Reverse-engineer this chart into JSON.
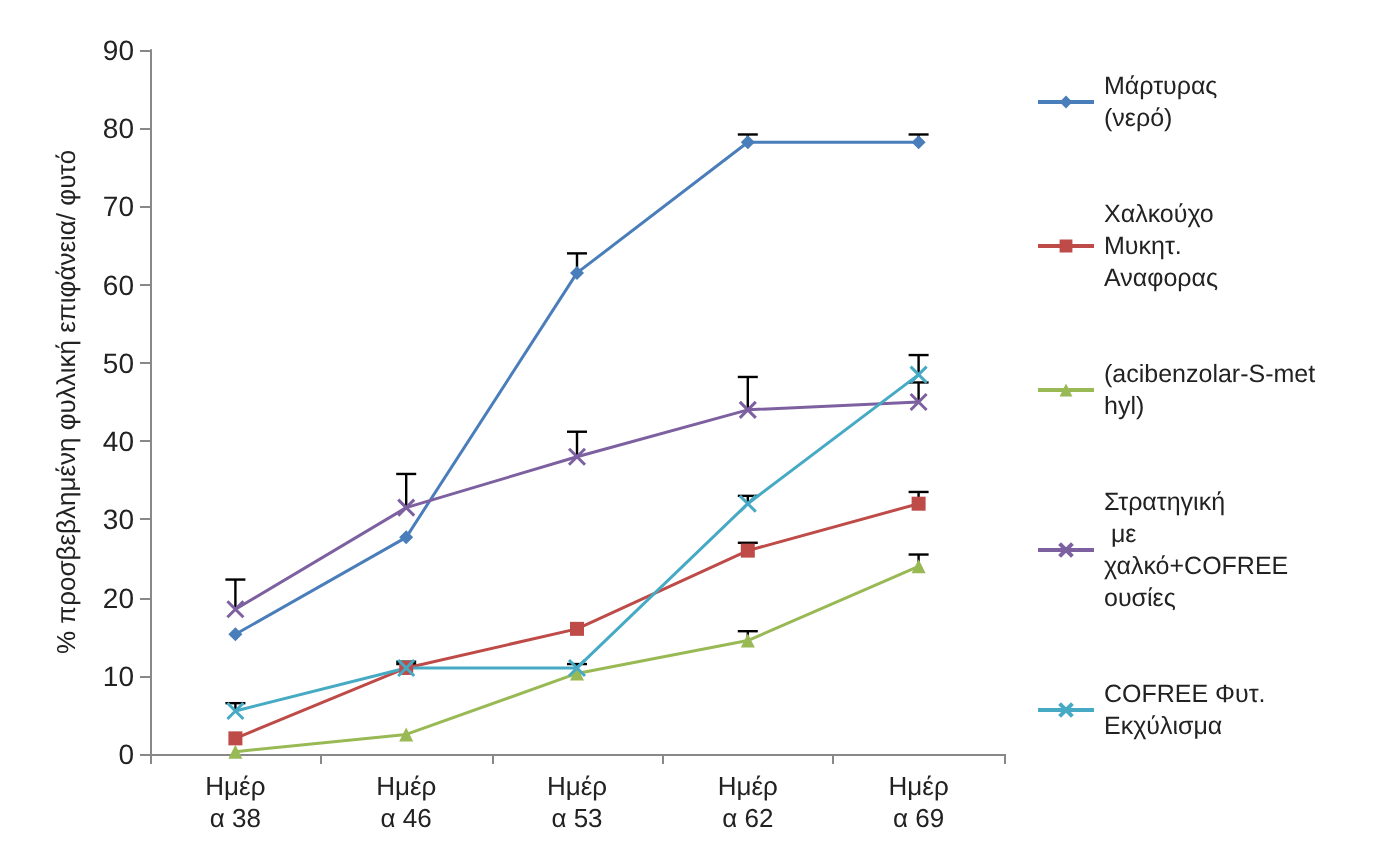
{
  "chart_data": {
    "type": "line",
    "ylabel": "% προσβεβλημένη φυλλική επιφάνεια/ φυτό",
    "categories": [
      "Ημέρα 38",
      "Ημέρα 46",
      "Ημέρα 53",
      "Ημέρα 62",
      "Ημέρα 69"
    ],
    "series": [
      {
        "name": "Μάρτυρας (νερό)",
        "color": "#4a7ebb",
        "marker": "diamond",
        "values": [
          15.3,
          27.7,
          61.5,
          78.2,
          78.2
        ],
        "errors": [
          null,
          null,
          [
            61.5,
            64
          ],
          [
            78.2,
            79.2
          ],
          [
            78.2,
            79.2
          ]
        ]
      },
      {
        "name": "Χαλκούχο Μυκητ. Αναφορας",
        "color": "#be4b48",
        "marker": "square",
        "values": [
          2,
          11,
          16,
          26,
          32
        ],
        "errors": [
          null,
          [
            11,
            11.8
          ],
          null,
          [
            26,
            27
          ],
          [
            32,
            33.5
          ]
        ]
      },
      {
        "name": "(acibenzolar-S-methyl)",
        "color": "#98b954",
        "marker": "triangle",
        "values": [
          0.3,
          2.5,
          10.3,
          14.5,
          24
        ],
        "errors": [
          null,
          null,
          null,
          [
            14.5,
            15.7
          ],
          [
            24,
            25.5
          ]
        ]
      },
      {
        "name": "Στρατηγική με χαλκό+COFREE ουσίες",
        "color": "#7d60a0",
        "marker": "cross",
        "values": [
          18.5,
          31.5,
          38,
          44,
          45
        ],
        "errors": [
          [
            18.5,
            22.3
          ],
          [
            31.5,
            35.8
          ],
          [
            38,
            41.2
          ],
          [
            44,
            48.2
          ],
          [
            45,
            47.5
          ]
        ]
      },
      {
        "name": "COFREE Φυτ. Εκχύλισμα",
        "color": "#46aac5",
        "marker": "cross",
        "values": [
          5.5,
          11,
          11,
          32,
          48.5
        ],
        "errors": [
          [
            5.5,
            6.5
          ],
          [
            11,
            11.5
          ],
          [
            11,
            11.5
          ],
          [
            32,
            33
          ],
          [
            48.5,
            51
          ]
        ]
      }
    ],
    "ylim": [
      0,
      90
    ],
    "yticks": [
      0,
      10,
      20,
      30,
      40,
      50,
      60,
      70,
      80,
      90
    ],
    "grid": false,
    "legend": "right"
  }
}
